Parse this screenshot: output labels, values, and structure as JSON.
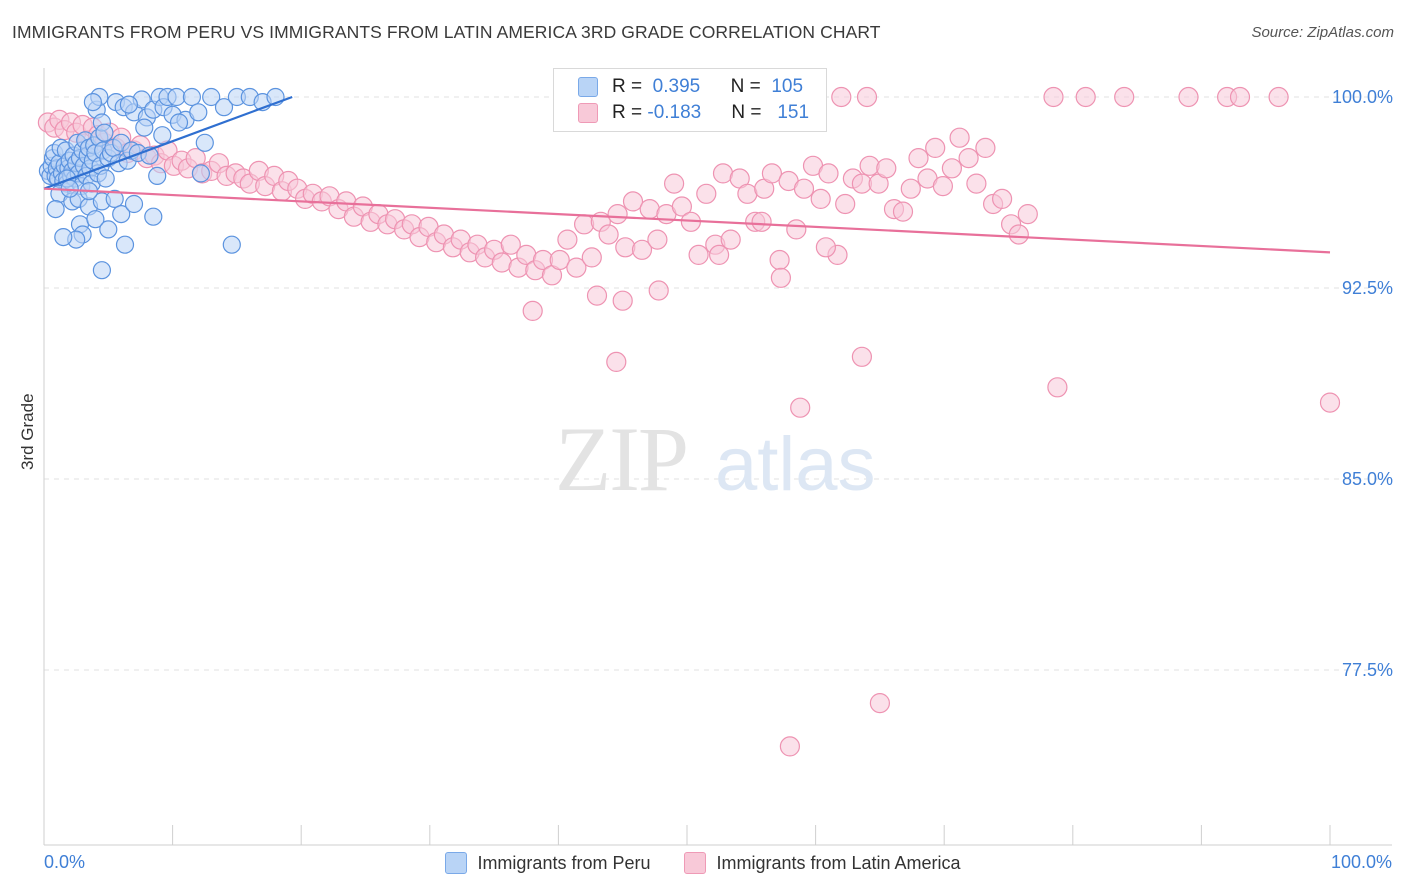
{
  "title": "IMMIGRANTS FROM PERU VS IMMIGRANTS FROM LATIN AMERICA 3RD GRADE CORRELATION CHART",
  "source": "Source: ZipAtlas.com",
  "colors": {
    "blue": "#3f7fd6",
    "blue_fill": "#b9d4f6",
    "pink": "#e8709a",
    "pink_fill": "#f8c9d8"
  },
  "chart_data": {
    "type": "scatter",
    "title": "IMMIGRANTS FROM PERU VS IMMIGRANTS FROM LATIN AMERICA 3RD GRADE CORRELATION CHART",
    "xlabel": "",
    "ylabel": "3rd Grade",
    "xlim": [
      0,
      100
    ],
    "ylim": [
      70,
      100.8
    ],
    "x_tick_labels": {
      "left": "0.0%",
      "right": "100.0%"
    },
    "y_ticks": [
      77.5,
      85.0,
      92.5,
      100.0
    ],
    "y_tick_labels": [
      "77.5%",
      "85.0%",
      "92.5%",
      "100.0%"
    ],
    "grid": true,
    "series": [
      {
        "name": "Immigrants from Peru",
        "R": "0.395",
        "N": "105",
        "trend": {
          "x": [
            0,
            19.3
          ],
          "y": [
            96.4,
            100.0
          ]
        },
        "points": [
          [
            0.3,
            97.1
          ],
          [
            0.5,
            96.9
          ],
          [
            0.6,
            97.3
          ],
          [
            0.7,
            97.6
          ],
          [
            0.8,
            97.8
          ],
          [
            0.9,
            96.9
          ],
          [
            1.0,
            97.2
          ],
          [
            1.1,
            96.8
          ],
          [
            1.2,
            97.4
          ],
          [
            1.3,
            98.0
          ],
          [
            1.4,
            97.0
          ],
          [
            1.5,
            96.7
          ],
          [
            1.6,
            97.3
          ],
          [
            1.7,
            97.9
          ],
          [
            1.8,
            96.6
          ],
          [
            1.9,
            97.2
          ],
          [
            2.0,
            97.5
          ],
          [
            2.1,
            96.9
          ],
          [
            2.2,
            97.1
          ],
          [
            2.3,
            97.7
          ],
          [
            2.4,
            96.8
          ],
          [
            2.5,
            97.4
          ],
          [
            2.6,
            98.2
          ],
          [
            2.7,
            97.0
          ],
          [
            2.8,
            97.6
          ],
          [
            2.9,
            96.5
          ],
          [
            3.0,
            97.9
          ],
          [
            3.1,
            97.3
          ],
          [
            3.2,
            98.3
          ],
          [
            3.3,
            96.9
          ],
          [
            3.4,
            97.7
          ],
          [
            3.5,
            98.0
          ],
          [
            3.6,
            97.2
          ],
          [
            3.7,
            96.6
          ],
          [
            3.8,
            97.5
          ],
          [
            3.9,
            98.1
          ],
          [
            4.0,
            97.8
          ],
          [
            4.1,
            99.5
          ],
          [
            4.2,
            97.0
          ],
          [
            4.3,
            98.4
          ],
          [
            4.4,
            97.3
          ],
          [
            4.5,
            99.0
          ],
          [
            4.6,
            97.9
          ],
          [
            4.7,
            98.6
          ],
          [
            4.8,
            96.8
          ],
          [
            5.0,
            97.6
          ],
          [
            5.2,
            97.8
          ],
          [
            5.4,
            98.0
          ],
          [
            5.6,
            99.8
          ],
          [
            5.8,
            97.4
          ],
          [
            6.0,
            98.2
          ],
          [
            6.2,
            99.6
          ],
          [
            6.5,
            97.5
          ],
          [
            6.8,
            97.9
          ],
          [
            7.0,
            99.4
          ],
          [
            7.3,
            97.8
          ],
          [
            7.6,
            99.9
          ],
          [
            8.0,
            99.2
          ],
          [
            8.2,
            97.7
          ],
          [
            8.5,
            99.5
          ],
          [
            8.8,
            96.9
          ],
          [
            9.0,
            100.0
          ],
          [
            9.3,
            99.6
          ],
          [
            9.6,
            100.0
          ],
          [
            10.0,
            99.3
          ],
          [
            10.3,
            100.0
          ],
          [
            11.0,
            99.1
          ],
          [
            11.5,
            100.0
          ],
          [
            12.0,
            99.4
          ],
          [
            12.5,
            98.2
          ],
          [
            13.0,
            100.0
          ],
          [
            14.0,
            99.6
          ],
          [
            15.0,
            100.0
          ],
          [
            16.0,
            100.0
          ],
          [
            17.0,
            99.8
          ],
          [
            18.0,
            100.0
          ],
          [
            6.6,
            99.7
          ],
          [
            4.3,
            100.0
          ],
          [
            3.8,
            99.8
          ],
          [
            12.2,
            97.0
          ],
          [
            1.2,
            96.2
          ],
          [
            2.2,
            95.9
          ],
          [
            2.7,
            96.0
          ],
          [
            3.5,
            95.7
          ],
          [
            4.5,
            95.9
          ],
          [
            5.5,
            96.0
          ],
          [
            6.0,
            95.4
          ],
          [
            7.0,
            95.8
          ],
          [
            8.5,
            95.3
          ],
          [
            2.8,
            95.0
          ],
          [
            4.0,
            95.2
          ],
          [
            5.0,
            94.8
          ],
          [
            3.0,
            94.6
          ],
          [
            6.3,
            94.2
          ],
          [
            2.5,
            94.4
          ],
          [
            1.5,
            94.5
          ],
          [
            4.5,
            93.2
          ],
          [
            14.6,
            94.2
          ],
          [
            3.5,
            96.3
          ],
          [
            1.8,
            96.8
          ],
          [
            0.9,
            95.6
          ],
          [
            2.0,
            96.4
          ],
          [
            9.2,
            98.5
          ],
          [
            7.8,
            98.8
          ],
          [
            10.5,
            99.0
          ]
        ]
      },
      {
        "name": "Immigrants from Latin America",
        "R": "-0.183",
        "N": "151",
        "trend": {
          "x": [
            0,
            100
          ],
          "y": [
            96.4,
            93.9
          ]
        },
        "points": [
          [
            0.3,
            99.0
          ],
          [
            0.8,
            98.8
          ],
          [
            1.2,
            99.1
          ],
          [
            1.6,
            98.7
          ],
          [
            2.1,
            99.0
          ],
          [
            2.5,
            98.6
          ],
          [
            3.0,
            98.9
          ],
          [
            3.4,
            98.3
          ],
          [
            3.8,
            98.8
          ],
          [
            4.2,
            98.5
          ],
          [
            4.7,
            98.2
          ],
          [
            5.1,
            98.6
          ],
          [
            5.6,
            98.0
          ],
          [
            6.0,
            98.4
          ],
          [
            6.5,
            97.8
          ],
          [
            7.0,
            97.9
          ],
          [
            7.5,
            98.1
          ],
          [
            8.0,
            97.6
          ],
          [
            8.6,
            97.7
          ],
          [
            9.1,
            97.4
          ],
          [
            9.6,
            97.9
          ],
          [
            10.1,
            97.3
          ],
          [
            10.7,
            97.5
          ],
          [
            11.2,
            97.2
          ],
          [
            11.8,
            97.6
          ],
          [
            12.3,
            97.0
          ],
          [
            13.0,
            97.1
          ],
          [
            13.6,
            97.4
          ],
          [
            14.2,
            96.9
          ],
          [
            14.9,
            97.0
          ],
          [
            15.5,
            96.8
          ],
          [
            16.0,
            96.6
          ],
          [
            16.7,
            97.1
          ],
          [
            17.2,
            96.5
          ],
          [
            17.9,
            96.9
          ],
          [
            18.5,
            96.3
          ],
          [
            19.0,
            96.7
          ],
          [
            19.7,
            96.4
          ],
          [
            20.3,
            96.0
          ],
          [
            20.9,
            96.2
          ],
          [
            21.6,
            95.9
          ],
          [
            22.2,
            96.1
          ],
          [
            22.9,
            95.6
          ],
          [
            23.5,
            95.9
          ],
          [
            24.1,
            95.3
          ],
          [
            24.8,
            95.7
          ],
          [
            25.4,
            95.1
          ],
          [
            26.0,
            95.4
          ],
          [
            26.7,
            95.0
          ],
          [
            27.3,
            95.2
          ],
          [
            28.0,
            94.8
          ],
          [
            28.6,
            95.0
          ],
          [
            29.2,
            94.5
          ],
          [
            29.9,
            94.9
          ],
          [
            30.5,
            94.3
          ],
          [
            31.1,
            94.6
          ],
          [
            31.8,
            94.1
          ],
          [
            32.4,
            94.4
          ],
          [
            33.1,
            93.9
          ],
          [
            33.7,
            94.2
          ],
          [
            34.3,
            93.7
          ],
          [
            35.0,
            94.0
          ],
          [
            35.6,
            93.5
          ],
          [
            36.3,
            94.2
          ],
          [
            36.9,
            93.3
          ],
          [
            37.5,
            93.8
          ],
          [
            38.2,
            93.2
          ],
          [
            38.8,
            93.6
          ],
          [
            39.5,
            93.0
          ],
          [
            40.1,
            93.6
          ],
          [
            40.7,
            94.4
          ],
          [
            41.4,
            93.3
          ],
          [
            42.0,
            95.0
          ],
          [
            42.6,
            93.7
          ],
          [
            43.3,
            95.1
          ],
          [
            43.9,
            94.6
          ],
          [
            44.6,
            95.4
          ],
          [
            45.2,
            94.1
          ],
          [
            45.8,
            95.9
          ],
          [
            46.5,
            94.0
          ],
          [
            47.1,
            95.6
          ],
          [
            47.7,
            94.4
          ],
          [
            48.4,
            95.4
          ],
          [
            49.0,
            96.6
          ],
          [
            49.6,
            95.7
          ],
          [
            50.3,
            95.1
          ],
          [
            50.9,
            93.8
          ],
          [
            51.5,
            96.2
          ],
          [
            52.2,
            94.2
          ],
          [
            52.8,
            97.0
          ],
          [
            53.4,
            94.4
          ],
          [
            54.1,
            96.8
          ],
          [
            54.7,
            96.2
          ],
          [
            55.3,
            95.1
          ],
          [
            56.0,
            96.4
          ],
          [
            56.6,
            97.0
          ],
          [
            57.2,
            93.6
          ],
          [
            57.9,
            96.7
          ],
          [
            58.5,
            94.8
          ],
          [
            59.1,
            96.4
          ],
          [
            59.8,
            97.3
          ],
          [
            60.4,
            96.0
          ],
          [
            61.0,
            97.0
          ],
          [
            61.7,
            93.8
          ],
          [
            62.3,
            95.8
          ],
          [
            62.9,
            96.8
          ],
          [
            63.6,
            96.6
          ],
          [
            64.2,
            97.3
          ],
          [
            64.9,
            96.6
          ],
          [
            65.5,
            97.2
          ],
          [
            66.1,
            95.6
          ],
          [
            66.8,
            95.5
          ],
          [
            67.4,
            96.4
          ],
          [
            68.0,
            97.6
          ],
          [
            68.7,
            96.8
          ],
          [
            69.3,
            98.0
          ],
          [
            69.9,
            96.5
          ],
          [
            70.6,
            97.2
          ],
          [
            71.2,
            98.4
          ],
          [
            71.9,
            97.6
          ],
          [
            72.5,
            96.6
          ],
          [
            73.2,
            98.0
          ],
          [
            73.8,
            95.8
          ],
          [
            74.5,
            96.0
          ],
          [
            75.2,
            95.0
          ],
          [
            75.8,
            94.6
          ],
          [
            76.5,
            95.4
          ],
          [
            60.0,
            99.3
          ],
          [
            62.0,
            100.0
          ],
          [
            64.0,
            100.0
          ],
          [
            78.5,
            100.0
          ],
          [
            81.0,
            100.0
          ],
          [
            84.0,
            100.0
          ],
          [
            89.0,
            100.0
          ],
          [
            92.0,
            100.0
          ],
          [
            93.0,
            100.0
          ],
          [
            96.0,
            100.0
          ],
          [
            63.6,
            89.8
          ],
          [
            58.8,
            87.8
          ],
          [
            100.0,
            88.0
          ],
          [
            65.0,
            76.2
          ],
          [
            58.0,
            74.5
          ],
          [
            78.8,
            88.6
          ],
          [
            44.5,
            89.6
          ],
          [
            38.0,
            91.6
          ],
          [
            45.0,
            92.0
          ],
          [
            47.8,
            92.4
          ],
          [
            57.3,
            92.9
          ],
          [
            43.0,
            92.2
          ],
          [
            52.5,
            93.8
          ],
          [
            55.8,
            95.1
          ],
          [
            60.8,
            94.1
          ]
        ]
      }
    ],
    "legend": {
      "placement": "bottom-center",
      "entries": [
        "Immigrants from Peru",
        "Immigrants from Latin America"
      ]
    }
  }
}
